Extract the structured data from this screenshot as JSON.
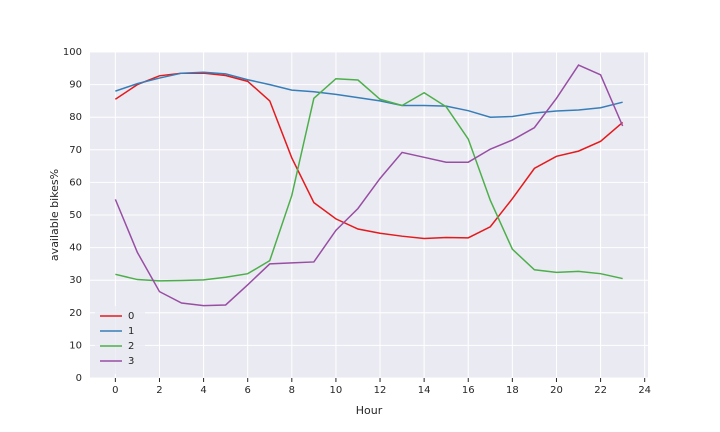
{
  "chart_data": {
    "type": "line",
    "xlabel": "Hour",
    "ylabel": "available bikes%",
    "x": [
      0,
      1,
      2,
      3,
      4,
      5,
      6,
      7,
      8,
      9,
      10,
      11,
      12,
      13,
      14,
      15,
      16,
      17,
      18,
      19,
      20,
      21,
      22,
      23
    ],
    "series": [
      {
        "name": "0",
        "color": "#e41a1c",
        "values": [
          85.5,
          90,
          92.7,
          93.5,
          93.5,
          92.8,
          91,
          85,
          67.5,
          53.8,
          48.8,
          45.7,
          44.4,
          43.5,
          42.8,
          43.1,
          43.0,
          46.4,
          55,
          64.3,
          68,
          69.6,
          72.6,
          78.4
        ]
      },
      {
        "name": "1",
        "color": "#377eb8",
        "values": [
          88,
          90.3,
          92,
          93.5,
          93.8,
          93.3,
          91.5,
          90,
          88.3,
          87.8,
          87,
          86,
          85,
          83.6,
          83.6,
          83.4,
          82,
          80,
          80.2,
          81.3,
          81.9,
          82.2,
          82.9,
          84.6
        ]
      },
      {
        "name": "2",
        "color": "#4daf4a",
        "values": [
          31.8,
          30.2,
          29.8,
          29.9,
          30.1,
          30.9,
          32,
          36,
          56,
          85.8,
          91.8,
          91.4,
          85.5,
          83.6,
          87.5,
          83.2,
          73.3,
          54.5,
          39.5,
          33.2,
          32.4,
          32.7,
          32,
          30.5
        ]
      },
      {
        "name": "3",
        "color": "#984ea3",
        "values": [
          54.8,
          38.5,
          26.5,
          23,
          22.2,
          22.4,
          28.6,
          35,
          35.3,
          35.6,
          45.3,
          52,
          61.2,
          69.2,
          67.7,
          66.2,
          66.2,
          70.2,
          73,
          76.8,
          85.8,
          96,
          93,
          77.3
        ]
      }
    ],
    "xlim": [
      -1.15,
      24.15
    ],
    "xticks": [
      0,
      2,
      4,
      6,
      8,
      10,
      12,
      14,
      16,
      18,
      20,
      22,
      24
    ],
    "ylim": [
      0,
      100
    ],
    "yticks": [
      0,
      10,
      20,
      30,
      40,
      50,
      60,
      70,
      80,
      90,
      100
    ],
    "grid": true,
    "legend": "lower left"
  }
}
